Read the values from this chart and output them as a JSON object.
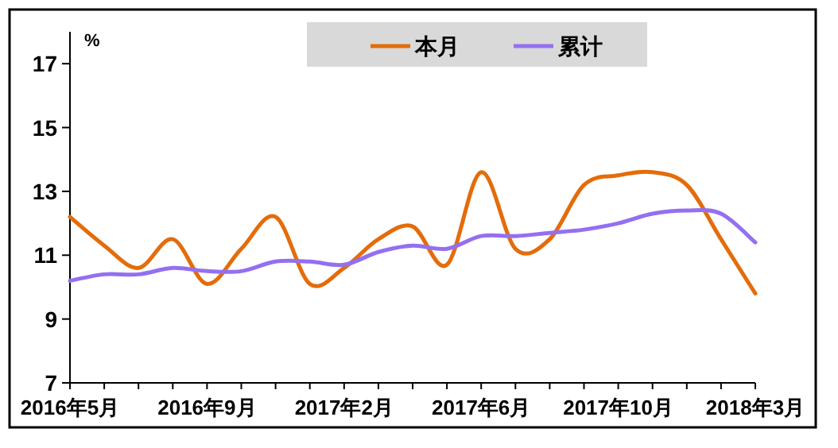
{
  "chart_data": {
    "type": "line",
    "ylabel": "%",
    "legend": "top",
    "categories": [
      "2016年5月",
      null,
      null,
      null,
      "2016年9月",
      null,
      null,
      null,
      "2017年2月",
      null,
      null,
      null,
      "2017年6月",
      null,
      null,
      null,
      "2017年10月",
      null,
      null,
      null,
      "2018年3月"
    ],
    "series": [
      {
        "name": "本月",
        "color": "#e46c0a",
        "values": [
          12.2,
          11.3,
          10.6,
          11.5,
          10.1,
          11.2,
          12.2,
          10.1,
          10.6,
          11.5,
          11.9,
          10.7,
          13.6,
          11.2,
          11.5,
          13.2,
          13.5,
          13.6,
          13.2,
          11.5,
          9.8
        ]
      },
      {
        "name": "累计",
        "color": "#9370f0",
        "values": [
          10.2,
          10.4,
          10.4,
          10.6,
          10.5,
          10.5,
          10.8,
          10.8,
          10.7,
          11.1,
          11.3,
          11.2,
          11.6,
          11.6,
          11.7,
          11.8,
          12.0,
          12.3,
          12.4,
          12.3,
          11.4
        ]
      }
    ],
    "ylim": [
      7,
      18
    ],
    "yticks": [
      7,
      9,
      11,
      13,
      15,
      17
    ]
  }
}
